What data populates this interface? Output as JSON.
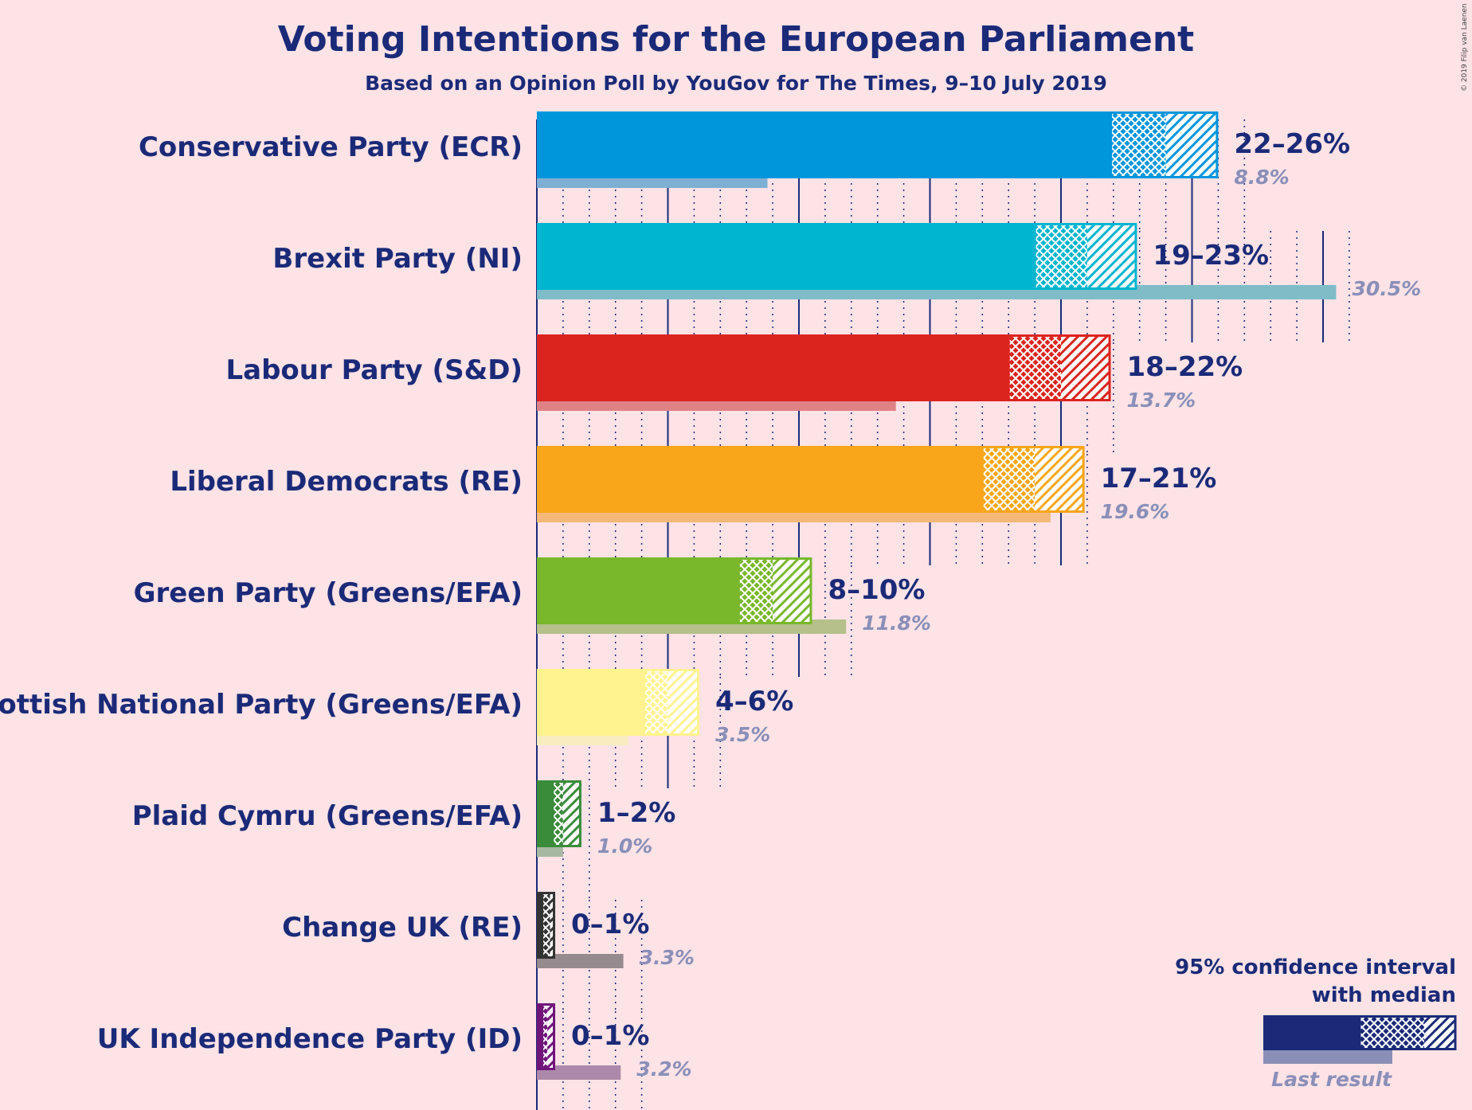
{
  "chart_data": {
    "type": "bar",
    "orientation": "horizontal",
    "title": "Voting Intentions for the European Parliament",
    "subtitle": "Based on an Opinion Poll by YouGov for The Times, 9–10 July 2019",
    "copyright": "© 2019 Filip van Laenen",
    "xlim": [
      0,
      31
    ],
    "grid": true,
    "legend": {
      "position": "bottom-right",
      "ci_line1": "95% confidence interval",
      "ci_line2": "with median",
      "last": "Last result"
    },
    "series": [
      {
        "name": "Conservative Party (ECR)",
        "color": "#0096dc",
        "last_color": "#7fafd2",
        "ci_low": 21.9,
        "median": 24.0,
        "ci_high": 26.0,
        "range_label": "22–26%",
        "last_result": 8.8,
        "last_label": "8.8%"
      },
      {
        "name": "Brexit Party (NI)",
        "color": "#00b5d0",
        "last_color": "#7fbcc8",
        "ci_low": 19.0,
        "median": 21.0,
        "ci_high": 22.9,
        "range_label": "19–23%",
        "last_result": 30.5,
        "last_label": "30.5%"
      },
      {
        "name": "Labour Party (S&D)",
        "color": "#dc241f",
        "last_color": "#de8286",
        "ci_low": 18.0,
        "median": 20.0,
        "ci_high": 21.9,
        "range_label": "18–22%",
        "last_result": 13.7,
        "last_label": "13.7%"
      },
      {
        "name": "Liberal Democrats (RE)",
        "color": "#faa61a",
        "last_color": "#f4b878",
        "ci_low": 17.0,
        "median": 19.0,
        "ci_high": 20.9,
        "range_label": "17–21%",
        "last_result": 19.6,
        "last_label": "19.6%"
      },
      {
        "name": "Green Party (Greens/EFA)",
        "color": "#78b82a",
        "last_color": "#b5c08a",
        "ci_low": 7.7,
        "median": 9.0,
        "ci_high": 10.5,
        "range_label": "8–10%",
        "last_result": 11.8,
        "last_label": "11.8%"
      },
      {
        "name": "Scottish National Party (Greens/EFA)",
        "color": "#fff38f",
        "last_color": "#f8ecc0",
        "ci_low": 4.1,
        "median": 5.0,
        "ci_high": 6.2,
        "range_label": "4–6%",
        "last_result": 3.5,
        "last_label": "3.5%"
      },
      {
        "name": "Plaid Cymru (Greens/EFA)",
        "color": "#3a8c3a",
        "last_color": "#a6b8a2",
        "ci_low": 0.6,
        "median": 1.0,
        "ci_high": 1.7,
        "range_label": "1–2%",
        "last_result": 1.0,
        "last_label": "1.0%"
      },
      {
        "name": "Change UK (RE)",
        "color": "#333333",
        "last_color": "#958b8e",
        "ci_low": 0.2,
        "median": 0.5,
        "ci_high": 0.7,
        "range_label": "0–1%",
        "last_result": 3.3,
        "last_label": "3.3%"
      },
      {
        "name": "UK Independence Party (ID)",
        "color": "#70147a",
        "last_color": "#ac89aa",
        "ci_low": 0.2,
        "median": 0.4,
        "ci_high": 0.7,
        "range_label": "0–1%",
        "last_result": 3.2,
        "last_label": "3.2%"
      }
    ]
  }
}
